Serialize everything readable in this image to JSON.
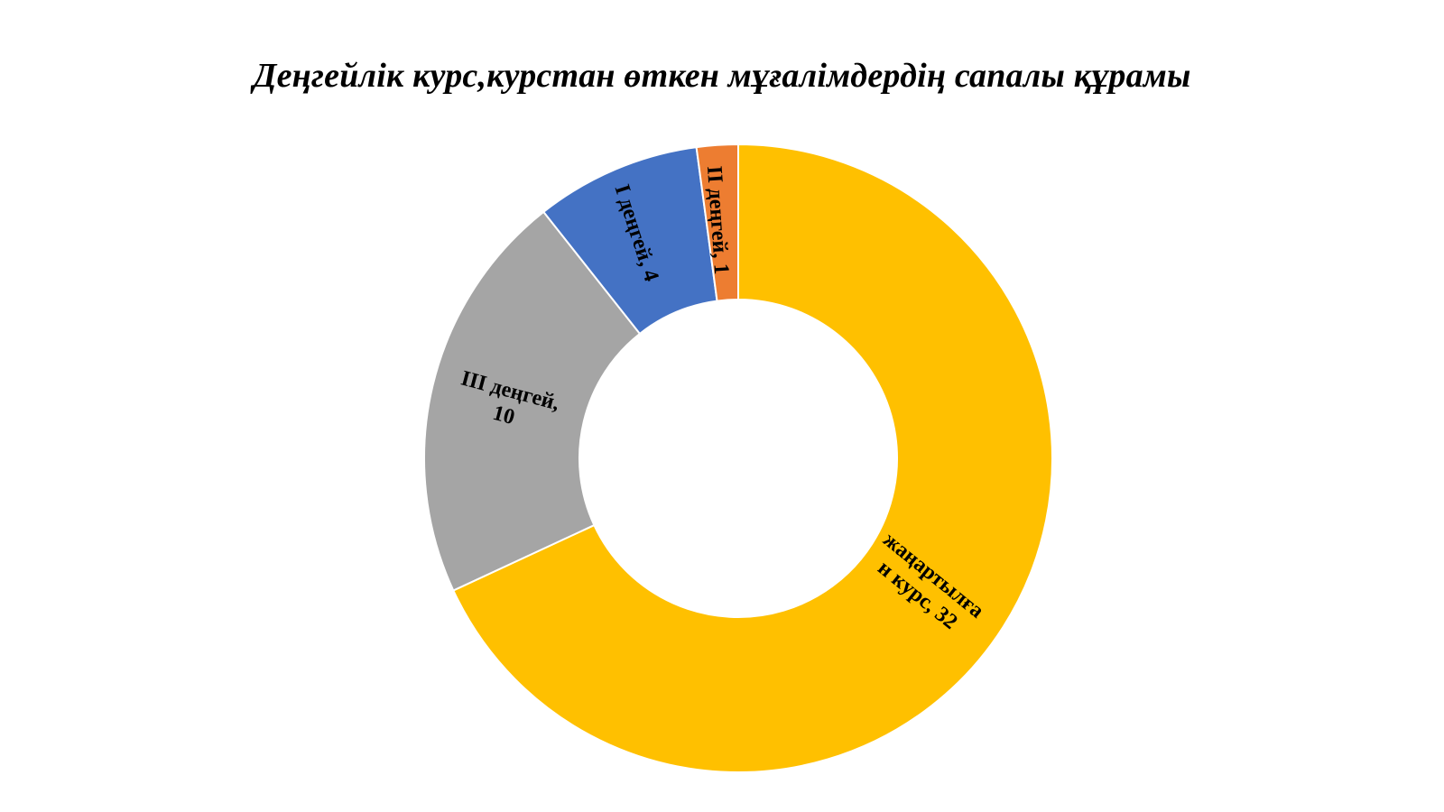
{
  "chart_data": {
    "type": "pie",
    "variant": "donut",
    "title": "Деңгейлік курс,курстан өткен мұғалімдердің сапалы құрамы",
    "start_angle_deg": 0,
    "direction": "clockwise",
    "slices": [
      {
        "name": "жаңартылған курс",
        "value": 32,
        "color": "#FFC000",
        "label_lines": [
          "жаңартылға",
          "н курс, 32"
        ]
      },
      {
        "name": "III деңгей",
        "value": 10,
        "color": "#A5A5A5",
        "label_lines": [
          "III деңгей,",
          "10"
        ]
      },
      {
        "name": "I деңгей",
        "value": 4,
        "color": "#4472C4",
        "label_lines": [
          "I деңгей, 4"
        ]
      },
      {
        "name": "II деңгей",
        "value": 1,
        "color": "#ED7D31",
        "label_lines": [
          "II деңгей, 1"
        ]
      }
    ],
    "legend": "none"
  }
}
